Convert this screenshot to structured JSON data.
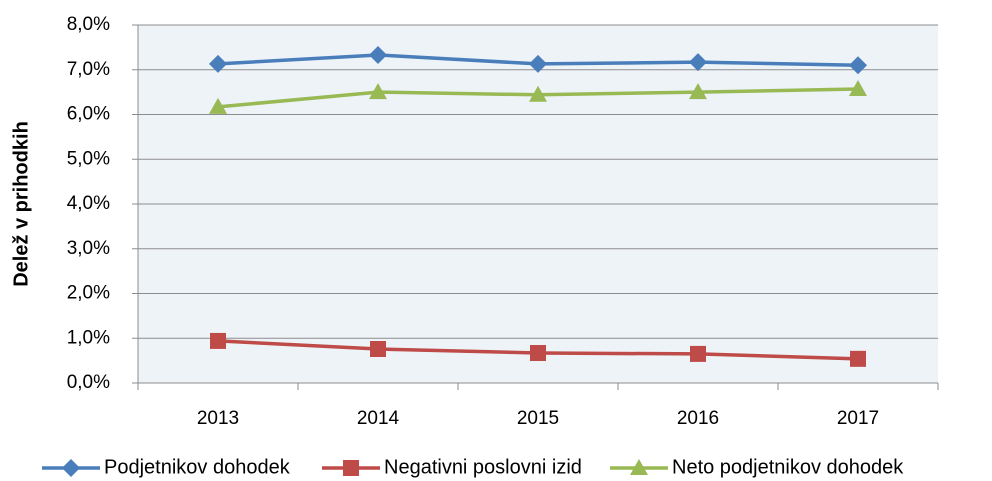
{
  "chart_data": {
    "type": "line",
    "y_label": "Delež v prihodkih",
    "categories": [
      "2013",
      "2014",
      "2015",
      "2016",
      "2017"
    ],
    "series": [
      {
        "name": "Podjetnikov dohodek",
        "color": "#4a7ebb",
        "marker": "diamond",
        "values": [
          7.13,
          7.33,
          7.13,
          7.17,
          7.1
        ]
      },
      {
        "name": "Negativni poslovni izid",
        "color": "#be4b48",
        "marker": "square",
        "values": [
          0.94,
          0.76,
          0.67,
          0.65,
          0.54
        ]
      },
      {
        "name": "Neto podjetnikov dohodek",
        "color": "#98b954",
        "marker": "triangle",
        "values": [
          6.17,
          6.5,
          6.44,
          6.5,
          6.57
        ]
      }
    ],
    "ylim": [
      0,
      8
    ],
    "yticks": [
      {
        "value": 0,
        "label": "0,0%"
      },
      {
        "value": 1,
        "label": "1,0%"
      },
      {
        "value": 2,
        "label": "2,0%"
      },
      {
        "value": 3,
        "label": "3,0%"
      },
      {
        "value": 4,
        "label": "4,0%"
      },
      {
        "value": 5,
        "label": "5,0%"
      },
      {
        "value": 6,
        "label": "6,0%"
      },
      {
        "value": 7,
        "label": "7,0%"
      },
      {
        "value": 8,
        "label": "8,0%"
      }
    ],
    "grid": true,
    "legend": "bottom"
  }
}
